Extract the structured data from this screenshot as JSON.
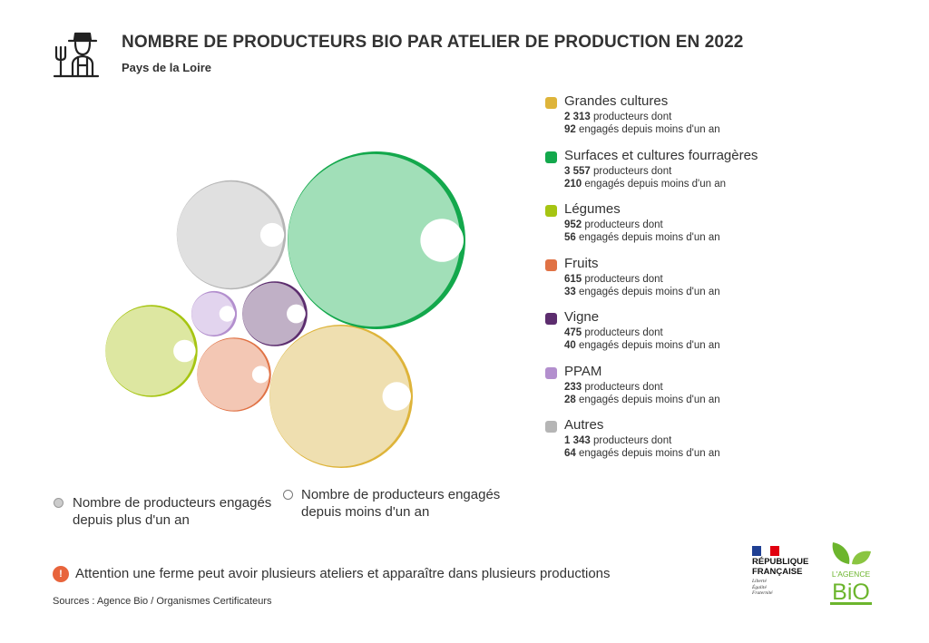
{
  "title": "NOMBRE DE PRODUCTEURS BIO PAR ATELIER DE PRODUCTION EN 2022",
  "subtitle": "Pays de la Loire",
  "header_icon": "farmer-with-pitchfork-icon",
  "chart_data": {
    "type": "bubble",
    "title": "NOMBRE DE PRODUCTEURS BIO PAR ATELIER DE PRODUCTION EN 2022",
    "subtitle": "Pays de la Loire",
    "series_measures": [
      "Nombre de producteurs engagés depuis plus d'un an",
      "Nombre de producteurs engagés depuis moins d'un an"
    ],
    "categories": [
      {
        "name": "Grandes cultures",
        "producteurs": 2313,
        "producteurs_label": "2 313",
        "recents": 92,
        "color": "#deb43a",
        "inner_color": "#efdfb0"
      },
      {
        "name": "Surfaces et cultures fourragères",
        "producteurs": 3557,
        "producteurs_label": "3 557",
        "recents": 210,
        "color": "#13a84c",
        "inner_color": "#a1dfb8"
      },
      {
        "name": "Légumes",
        "producteurs": 952,
        "producteurs_label": "952",
        "recents": 56,
        "color": "#a6c512",
        "inner_color": "#dde7a1"
      },
      {
        "name": "Fruits",
        "producteurs": 615,
        "producteurs_label": "615",
        "recents": 33,
        "color": "#e07245",
        "inner_color": "#f3c7b4"
      },
      {
        "name": "Vigne",
        "producteurs": 475,
        "producteurs_label": "475",
        "recents": 40,
        "color": "#5c2d6e",
        "inner_color": "#c0b0c6"
      },
      {
        "name": "PPAM",
        "producteurs": 233,
        "producteurs_label": "233",
        "recents": 28,
        "color": "#b38fce",
        "inner_color": "#e2d4ee"
      },
      {
        "name": "Autres",
        "producteurs": 1343,
        "producteurs_label": "1 343",
        "recents": 64,
        "color": "#b5b5b5",
        "inner_color": "#e0e0e0"
      }
    ]
  },
  "legend_texts": {
    "producers_suffix": "producteurs dont",
    "recent_suffix": "engagés depuis moins d'un an"
  },
  "key": {
    "older_label": "Nombre de producteurs engagés depuis plus d'un an",
    "recent_label": "Nombre de producteurs engagés depuis moins d'un an",
    "older_color": "#cccccc"
  },
  "note": {
    "icon": "!",
    "text": "Attention une ferme peut avoir plusieurs ateliers et apparaître dans plusieurs productions",
    "color": "#e8643c"
  },
  "source": "Sources : Agence Bio / Organismes Certificateurs",
  "logos": {
    "republique": {
      "line1": "RÉPUBLIQUE",
      "line2": "FRANÇAISE",
      "motto": [
        "Liberté",
        "Égalité",
        "Fraternité"
      ]
    },
    "agence_bio": {
      "line1": "L'AGENCE",
      "line2": "BiO"
    }
  }
}
